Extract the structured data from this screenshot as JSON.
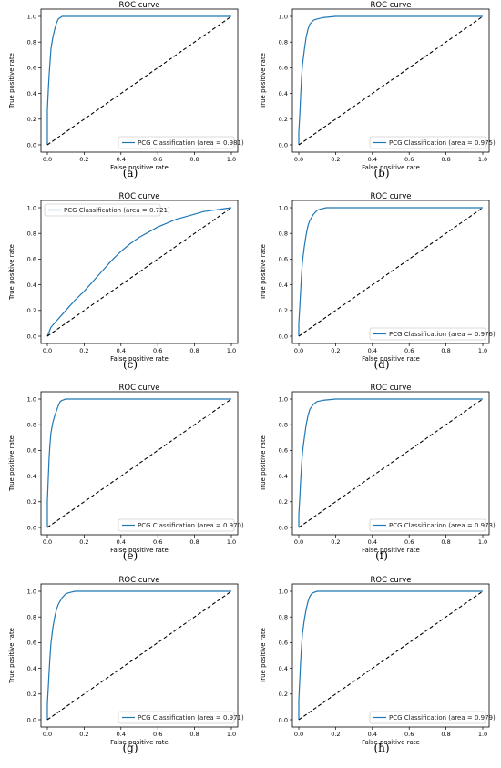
{
  "figure": {
    "panels": [
      {
        "caption": "(a)"
      },
      {
        "caption": "(b)"
      },
      {
        "caption": "(c)"
      },
      {
        "caption": "(d)"
      },
      {
        "caption": "(e)"
      },
      {
        "caption": "(f)"
      },
      {
        "caption": "(g)"
      },
      {
        "caption": "(h)"
      }
    ]
  },
  "colors": {
    "roc_line": "#1f77b4",
    "diagonal": "#000000"
  },
  "chart_data": [
    {
      "type": "line",
      "title": "ROC curve",
      "xlabel": "False positive rate",
      "ylabel": "True positive rate",
      "xlim": [
        0,
        1
      ],
      "ylim": [
        0,
        1
      ],
      "x_ticks": [
        "0.0",
        "0.2",
        "0.4",
        "0.6",
        "0.8",
        "1.0"
      ],
      "y_ticks": [
        "0.0",
        "0.2",
        "0.4",
        "0.6",
        "0.8",
        "1.0"
      ],
      "legend_position": "lower-right",
      "grid": false,
      "series": [
        {
          "name": "PCG Classification (area = 0.981)",
          "style": "solid",
          "x": [
            0,
            0.0,
            0.005,
            0.01,
            0.015,
            0.02,
            0.03,
            0.04,
            0.05,
            0.06,
            0.07,
            0.08,
            0.1,
            0.15,
            0.3,
            0.5,
            1.0
          ],
          "y": [
            0,
            0.27,
            0.42,
            0.55,
            0.65,
            0.75,
            0.84,
            0.9,
            0.95,
            0.98,
            0.99,
            1.0,
            1.0,
            1.0,
            1.0,
            1.0,
            1.0
          ]
        },
        {
          "name": "",
          "style": "dashed",
          "x": [
            0,
            1
          ],
          "y": [
            0,
            1
          ]
        }
      ]
    },
    {
      "type": "line",
      "title": "ROC curve",
      "xlabel": "False positive rate",
      "ylabel": "True positive rate",
      "xlim": [
        0,
        1
      ],
      "ylim": [
        0,
        1
      ],
      "x_ticks": [
        "0.0",
        "0.2",
        "0.4",
        "0.6",
        "0.8",
        "1.0"
      ],
      "y_ticks": [
        "0.0",
        "0.2",
        "0.4",
        "0.6",
        "0.8",
        "1.0"
      ],
      "legend_position": "lower-right",
      "grid": false,
      "series": [
        {
          "name": "PCG Classification (area = 0.975)",
          "style": "solid",
          "x": [
            0,
            0.0,
            0.005,
            0.01,
            0.015,
            0.02,
            0.03,
            0.04,
            0.05,
            0.06,
            0.08,
            0.1,
            0.13,
            0.2,
            0.4,
            1.0
          ],
          "y": [
            0,
            0.1,
            0.22,
            0.38,
            0.52,
            0.62,
            0.74,
            0.84,
            0.9,
            0.94,
            0.97,
            0.98,
            0.99,
            1.0,
            1.0,
            1.0
          ]
        },
        {
          "name": "",
          "style": "dashed",
          "x": [
            0,
            1
          ],
          "y": [
            0,
            1
          ]
        }
      ]
    },
    {
      "type": "line",
      "title": "ROC curve",
      "xlabel": "False positive rate",
      "ylabel": "True positive rate",
      "xlim": [
        0,
        1
      ],
      "ylim": [
        0,
        1
      ],
      "x_ticks": [
        "0.0",
        "0.2",
        "0.4",
        "0.6",
        "0.8",
        "1.0"
      ],
      "y_ticks": [
        "0.0",
        "0.2",
        "0.4",
        "0.6",
        "0.8",
        "1.0"
      ],
      "legend_position": "upper-left",
      "grid": false,
      "series": [
        {
          "name": "PCG Classification (area = 0.721)",
          "style": "solid",
          "x": [
            0,
            0.02,
            0.05,
            0.1,
            0.15,
            0.2,
            0.25,
            0.3,
            0.35,
            0.4,
            0.45,
            0.5,
            0.55,
            0.6,
            0.65,
            0.7,
            0.75,
            0.8,
            0.85,
            0.9,
            0.95,
            1.0
          ],
          "y": [
            0,
            0.07,
            0.12,
            0.2,
            0.28,
            0.35,
            0.43,
            0.51,
            0.59,
            0.66,
            0.72,
            0.77,
            0.81,
            0.85,
            0.88,
            0.91,
            0.93,
            0.95,
            0.97,
            0.98,
            0.99,
            1.0
          ]
        },
        {
          "name": "",
          "style": "dashed",
          "x": [
            0,
            1
          ],
          "y": [
            0,
            1
          ]
        }
      ]
    },
    {
      "type": "line",
      "title": "ROC curve",
      "xlabel": "False positive rate",
      "ylabel": "True positive rate",
      "xlim": [
        0,
        1
      ],
      "ylim": [
        0,
        1
      ],
      "x_ticks": [
        "0.0",
        "0.2",
        "0.4",
        "0.6",
        "0.8",
        "1.0"
      ],
      "y_ticks": [
        "0.0",
        "0.2",
        "0.4",
        "0.6",
        "0.8",
        "1.0"
      ],
      "legend_position": "lower-right",
      "grid": false,
      "series": [
        {
          "name": "PCG Classification (area = 0.976)",
          "style": "solid",
          "x": [
            0,
            0.0,
            0.005,
            0.01,
            0.015,
            0.02,
            0.03,
            0.04,
            0.05,
            0.06,
            0.08,
            0.1,
            0.12,
            0.15,
            0.25,
            0.5,
            1.0
          ],
          "y": [
            0,
            0.1,
            0.22,
            0.35,
            0.48,
            0.58,
            0.7,
            0.79,
            0.86,
            0.9,
            0.95,
            0.98,
            0.99,
            1.0,
            1.0,
            1.0,
            1.0
          ]
        },
        {
          "name": "",
          "style": "dashed",
          "x": [
            0,
            1
          ],
          "y": [
            0,
            1
          ]
        }
      ]
    },
    {
      "type": "line",
      "title": "ROC curve",
      "xlabel": "False positive rate",
      "ylabel": "True positive rate",
      "xlim": [
        0,
        1
      ],
      "ylim": [
        0,
        1
      ],
      "x_ticks": [
        "0.0",
        "0.2",
        "0.4",
        "0.6",
        "0.8",
        "1.0"
      ],
      "y_ticks": [
        "0.0",
        "0.2",
        "0.4",
        "0.6",
        "0.8",
        "1.0"
      ],
      "legend_position": "lower-right",
      "grid": false,
      "series": [
        {
          "name": "PCG Classification (area = 0.970)",
          "style": "solid",
          "x": [
            0,
            0.0,
            0.005,
            0.01,
            0.015,
            0.02,
            0.03,
            0.04,
            0.05,
            0.06,
            0.07,
            0.08,
            0.1,
            0.15,
            0.3,
            1.0
          ],
          "y": [
            0,
            0.2,
            0.38,
            0.55,
            0.66,
            0.74,
            0.82,
            0.87,
            0.91,
            0.95,
            0.98,
            0.99,
            1.0,
            1.0,
            1.0,
            1.0
          ]
        },
        {
          "name": "",
          "style": "dashed",
          "x": [
            0,
            1
          ],
          "y": [
            0,
            1
          ]
        }
      ]
    },
    {
      "type": "line",
      "title": "ROC curve",
      "xlabel": "False positive rate",
      "ylabel": "True positive rate",
      "xlim": [
        0,
        1
      ],
      "ylim": [
        0,
        1
      ],
      "x_ticks": [
        "0.0",
        "0.2",
        "0.4",
        "0.6",
        "0.8",
        "1.0"
      ],
      "y_ticks": [
        "0.0",
        "0.2",
        "0.4",
        "0.6",
        "0.8",
        "1.0"
      ],
      "legend_position": "lower-right",
      "grid": false,
      "series": [
        {
          "name": "PCG Classification (area = 0.973)",
          "style": "solid",
          "x": [
            0,
            0.0,
            0.005,
            0.01,
            0.015,
            0.02,
            0.03,
            0.04,
            0.05,
            0.06,
            0.08,
            0.1,
            0.13,
            0.2,
            0.4,
            1.0
          ],
          "y": [
            0,
            0.1,
            0.22,
            0.36,
            0.48,
            0.58,
            0.7,
            0.8,
            0.87,
            0.92,
            0.96,
            0.98,
            0.99,
            1.0,
            1.0,
            1.0
          ]
        },
        {
          "name": "",
          "style": "dashed",
          "x": [
            0,
            1
          ],
          "y": [
            0,
            1
          ]
        }
      ]
    },
    {
      "type": "line",
      "title": "ROC curve",
      "xlabel": "False positive rate",
      "ylabel": "True positive rate",
      "xlim": [
        0,
        1
      ],
      "ylim": [
        0,
        1
      ],
      "x_ticks": [
        "0.0",
        "0.2",
        "0.4",
        "0.6",
        "0.8",
        "1.0"
      ],
      "y_ticks": [
        "0.0",
        "0.2",
        "0.4",
        "0.6",
        "0.8",
        "1.0"
      ],
      "legend_position": "lower-right",
      "grid": false,
      "series": [
        {
          "name": "PCG Classification (area = 0.971)",
          "style": "solid",
          "x": [
            0,
            0.0,
            0.005,
            0.01,
            0.015,
            0.02,
            0.03,
            0.04,
            0.05,
            0.06,
            0.08,
            0.1,
            0.12,
            0.15,
            0.3,
            0.6,
            1.0
          ],
          "y": [
            0,
            0.12,
            0.25,
            0.38,
            0.5,
            0.6,
            0.72,
            0.8,
            0.86,
            0.9,
            0.95,
            0.98,
            0.99,
            1.0,
            1.0,
            1.0,
            1.0
          ]
        },
        {
          "name": "",
          "style": "dashed",
          "x": [
            0,
            1
          ],
          "y": [
            0,
            1
          ]
        }
      ]
    },
    {
      "type": "line",
      "title": "ROC curve",
      "xlabel": "False positive rate",
      "ylabel": "True positive rate",
      "xlim": [
        0,
        1
      ],
      "ylim": [
        0,
        1
      ],
      "x_ticks": [
        "0.0",
        "0.2",
        "0.4",
        "0.6",
        "0.8",
        "1.0"
      ],
      "y_ticks": [
        "0.0",
        "0.2",
        "0.4",
        "0.6",
        "0.8",
        "1.0"
      ],
      "legend_position": "lower-right",
      "grid": false,
      "series": [
        {
          "name": "PCG Classification (area = 0.979)",
          "style": "solid",
          "x": [
            0,
            0.0,
            0.005,
            0.01,
            0.015,
            0.02,
            0.03,
            0.04,
            0.05,
            0.06,
            0.07,
            0.08,
            0.1,
            0.2,
            0.5,
            1.0
          ],
          "y": [
            0,
            0.15,
            0.3,
            0.45,
            0.57,
            0.67,
            0.78,
            0.86,
            0.92,
            0.96,
            0.98,
            0.99,
            1.0,
            1.0,
            1.0,
            1.0
          ]
        },
        {
          "name": "",
          "style": "dashed",
          "x": [
            0,
            1
          ],
          "y": [
            0,
            1
          ]
        }
      ]
    }
  ]
}
